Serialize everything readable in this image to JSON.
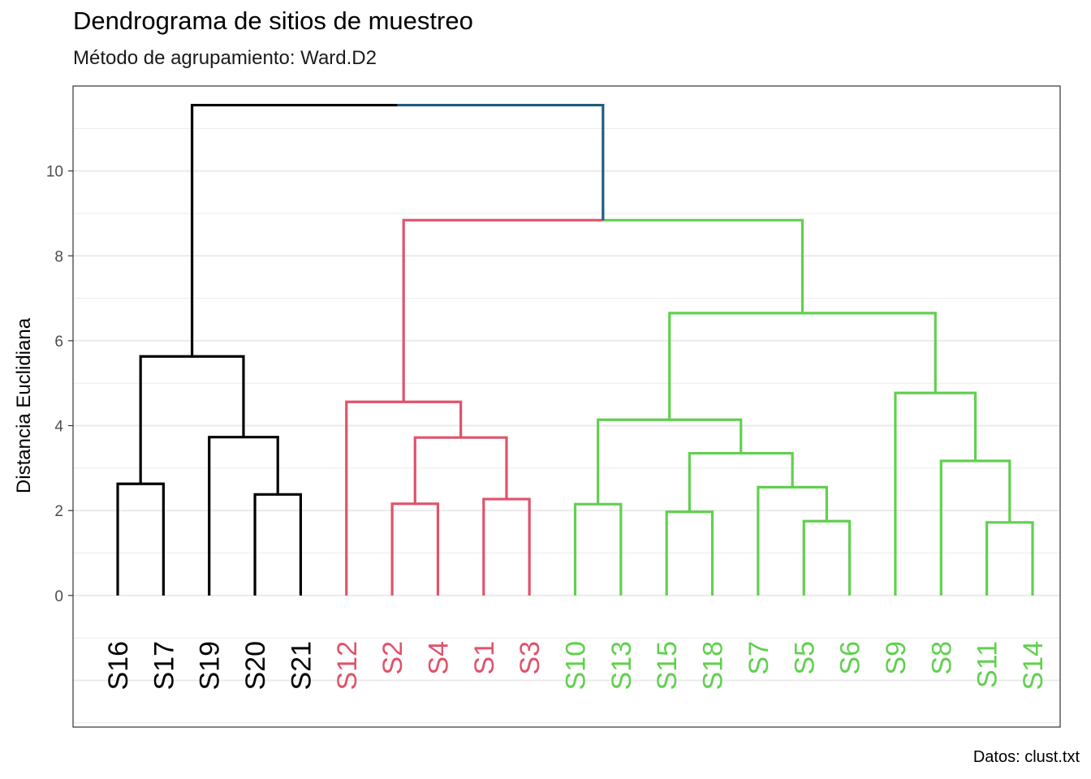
{
  "title": "Dendrograma de sitios de muestreo",
  "subtitle": "Método de agrupamiento: Ward.D2",
  "caption": "Datos: clust.txt",
  "colors": {
    "cluster_black": "#000000",
    "cluster_red": "#DF536B",
    "cluster_green": "#61D04F",
    "root_right": "#1F5C7F",
    "gridline": "#EBEBEB",
    "panel_border": "#333333"
  },
  "chart_data": {
    "type": "dendrogram",
    "method": "Ward.D2",
    "ylabel": "Distancia Euclidiana",
    "xlabel": "",
    "ylim": [
      -3.1,
      12.0
    ],
    "y_ticks": [
      0,
      2,
      4,
      6,
      8,
      10
    ],
    "grid": true,
    "leaves": [
      {
        "label": "S16",
        "cluster": "black"
      },
      {
        "label": "S17",
        "cluster": "black"
      },
      {
        "label": "S19",
        "cluster": "black"
      },
      {
        "label": "S20",
        "cluster": "black"
      },
      {
        "label": "S21",
        "cluster": "black"
      },
      {
        "label": "S12",
        "cluster": "red"
      },
      {
        "label": "S2",
        "cluster": "red"
      },
      {
        "label": "S4",
        "cluster": "red"
      },
      {
        "label": "S1",
        "cluster": "red"
      },
      {
        "label": "S3",
        "cluster": "red"
      },
      {
        "label": "S10",
        "cluster": "green"
      },
      {
        "label": "S13",
        "cluster": "green"
      },
      {
        "label": "S15",
        "cluster": "green"
      },
      {
        "label": "S18",
        "cluster": "green"
      },
      {
        "label": "S7",
        "cluster": "green"
      },
      {
        "label": "S5",
        "cluster": "green"
      },
      {
        "label": "S6",
        "cluster": "green"
      },
      {
        "label": "S9",
        "cluster": "green"
      },
      {
        "label": "S8",
        "cluster": "green"
      },
      {
        "label": "S11",
        "cluster": "green"
      },
      {
        "label": "S14",
        "cluster": "green"
      }
    ],
    "merges": [
      {
        "id": "m1",
        "left": "S16",
        "right": "S17",
        "height": 2.63
      },
      {
        "id": "m2",
        "left": "S20",
        "right": "S21",
        "height": 2.38
      },
      {
        "id": "m3",
        "left": "S19",
        "right": "m2",
        "height": 3.73
      },
      {
        "id": "m4",
        "left": "m1",
        "right": "m3",
        "height": 5.63
      },
      {
        "id": "m5",
        "left": "S2",
        "right": "S4",
        "height": 2.16
      },
      {
        "id": "m6",
        "left": "S1",
        "right": "S3",
        "height": 2.27
      },
      {
        "id": "m7",
        "left": "m5",
        "right": "m6",
        "height": 3.72
      },
      {
        "id": "m8",
        "left": "S12",
        "right": "m7",
        "height": 4.56
      },
      {
        "id": "m9",
        "left": "S10",
        "right": "S13",
        "height": 2.15
      },
      {
        "id": "m10",
        "left": "S15",
        "right": "S18",
        "height": 1.97
      },
      {
        "id": "m11",
        "left": "S5",
        "right": "S6",
        "height": 1.75
      },
      {
        "id": "m12",
        "left": "S7",
        "right": "m11",
        "height": 2.55
      },
      {
        "id": "m13",
        "left": "m10",
        "right": "m12",
        "height": 3.35
      },
      {
        "id": "m14",
        "left": "m9",
        "right": "m13",
        "height": 4.14
      },
      {
        "id": "m15",
        "left": "S11",
        "right": "S14",
        "height": 1.72
      },
      {
        "id": "m16",
        "left": "S8",
        "right": "m15",
        "height": 3.17
      },
      {
        "id": "m17",
        "left": "S9",
        "right": "m16",
        "height": 4.77
      },
      {
        "id": "m18",
        "left": "m14",
        "right": "m17",
        "height": 6.65
      },
      {
        "id": "m19",
        "left": "m8",
        "right": "m18",
        "height": 8.84
      },
      {
        "id": "m20",
        "left": "m4",
        "right": "m19",
        "height": 11.55
      }
    ]
  }
}
